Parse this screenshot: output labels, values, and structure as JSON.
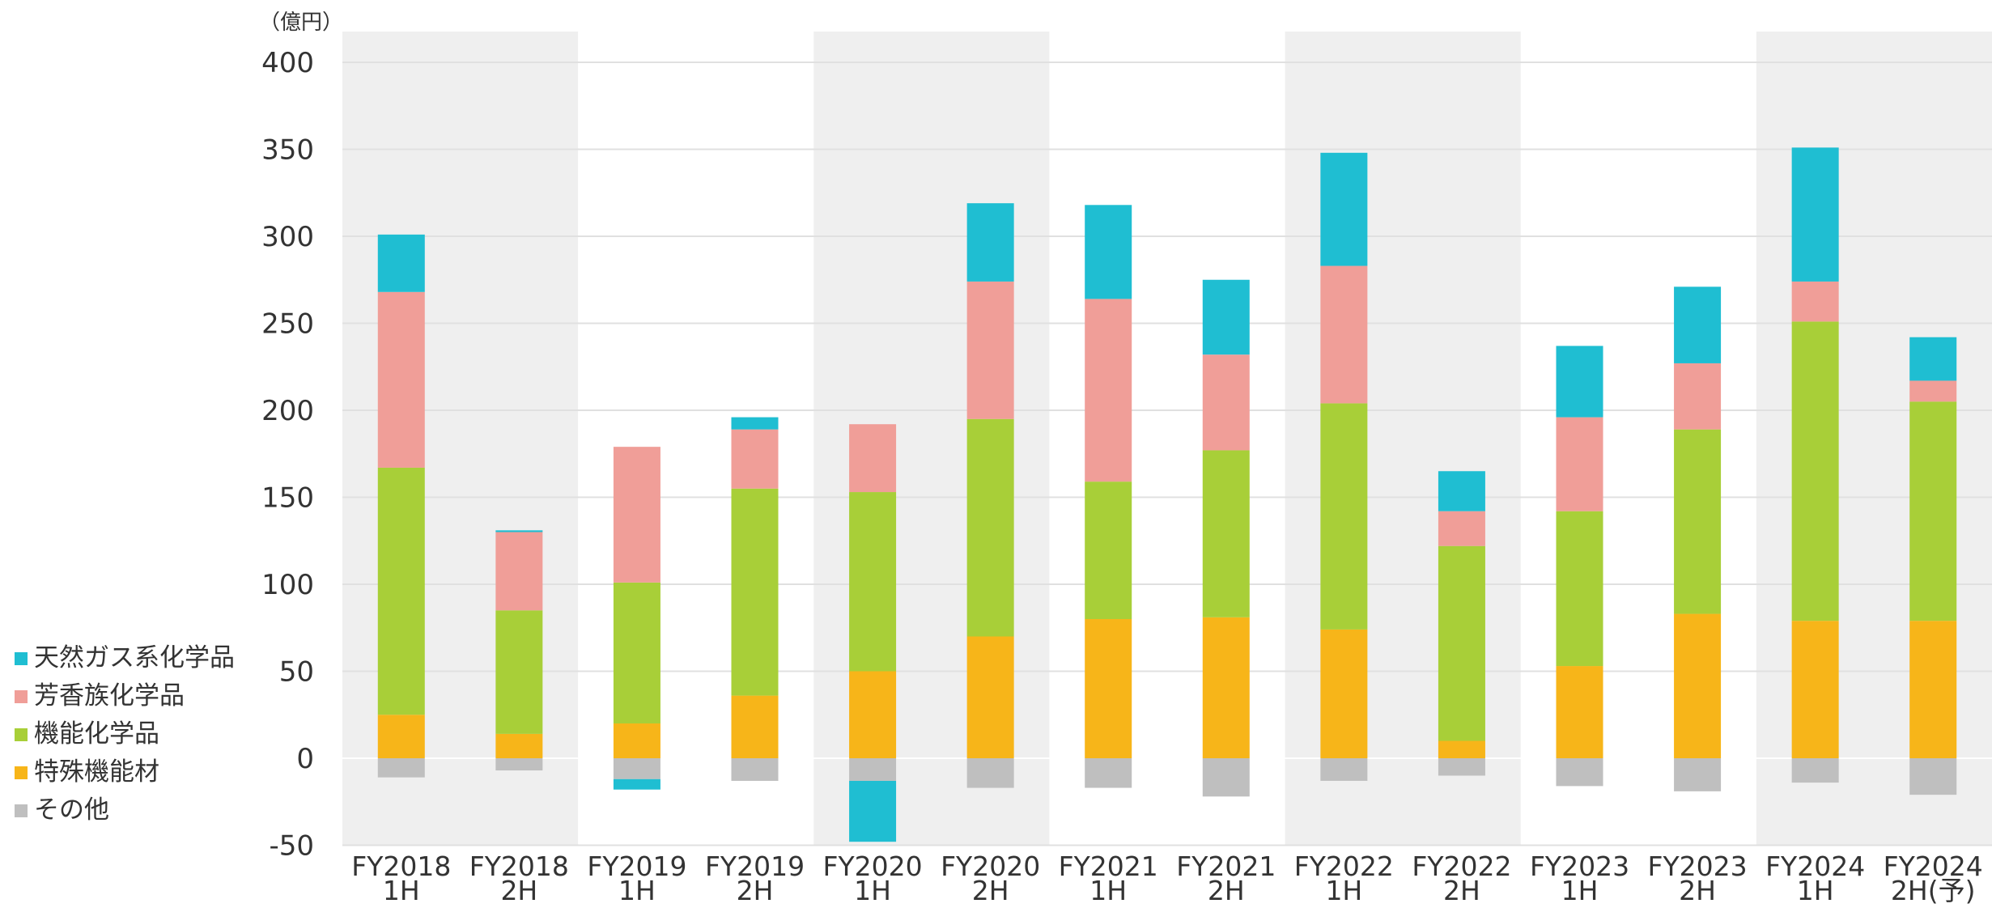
{
  "chart_data": {
    "type": "bar",
    "stacked": true,
    "unit_label": "（億円）",
    "categories": [
      [
        "FY2018",
        "1H"
      ],
      [
        "FY2018",
        "2H"
      ],
      [
        "FY2019",
        "1H"
      ],
      [
        "FY2019",
        "2H"
      ],
      [
        "FY2020",
        "1H"
      ],
      [
        "FY2020",
        "2H"
      ],
      [
        "FY2021",
        "1H"
      ],
      [
        "FY2021",
        "2H"
      ],
      [
        "FY2022",
        "1H"
      ],
      [
        "FY2022",
        "2H"
      ],
      [
        "FY2023",
        "1H"
      ],
      [
        "FY2023",
        "2H"
      ],
      [
        "FY2024",
        "1H"
      ],
      [
        "FY2024",
        "2H(予)"
      ]
    ],
    "shaded_fiscal_years": [
      "FY2018",
      "FY2020",
      "FY2022",
      "FY2024"
    ],
    "ylim": [
      -50,
      400
    ],
    "yticks": [
      -50,
      0,
      50,
      100,
      150,
      200,
      250,
      300,
      350,
      400
    ],
    "grid": true,
    "legend_position": "left",
    "series": [
      {
        "name": "特殊機能材",
        "color": "#f7b519",
        "values": [
          25,
          14,
          20,
          36,
          50,
          70,
          80,
          81,
          74,
          10,
          53,
          83,
          79,
          79
        ]
      },
      {
        "name": "機能化学品",
        "color": "#a8cf38",
        "values": [
          142,
          71,
          81,
          119,
          103,
          125,
          79,
          96,
          130,
          112,
          89,
          106,
          172,
          126
        ]
      },
      {
        "name": "芳香族化学品",
        "color": "#f09e98",
        "values": [
          101,
          45,
          78,
          34,
          39,
          79,
          105,
          55,
          79,
          20,
          54,
          38,
          23,
          12
        ]
      },
      {
        "name": "天然ガス系化学品",
        "color": "#1fbed2",
        "values": [
          33,
          1,
          0,
          7,
          0,
          45,
          54,
          43,
          65,
          23,
          41,
          44,
          77,
          25
        ]
      },
      {
        "name": "その他",
        "color": "#bfbfbf",
        "values": [
          -11,
          -7,
          -12,
          -13,
          -13,
          -17,
          -17,
          -22,
          -13,
          -10,
          -16,
          -19,
          -14,
          -21
        ]
      }
    ],
    "negative_stack_extra": {
      "series": "天然ガス系化学品",
      "values": [
        0,
        0,
        -6,
        0,
        -35,
        0,
        0,
        0,
        0,
        0,
        0,
        0,
        0,
        0
      ]
    }
  }
}
